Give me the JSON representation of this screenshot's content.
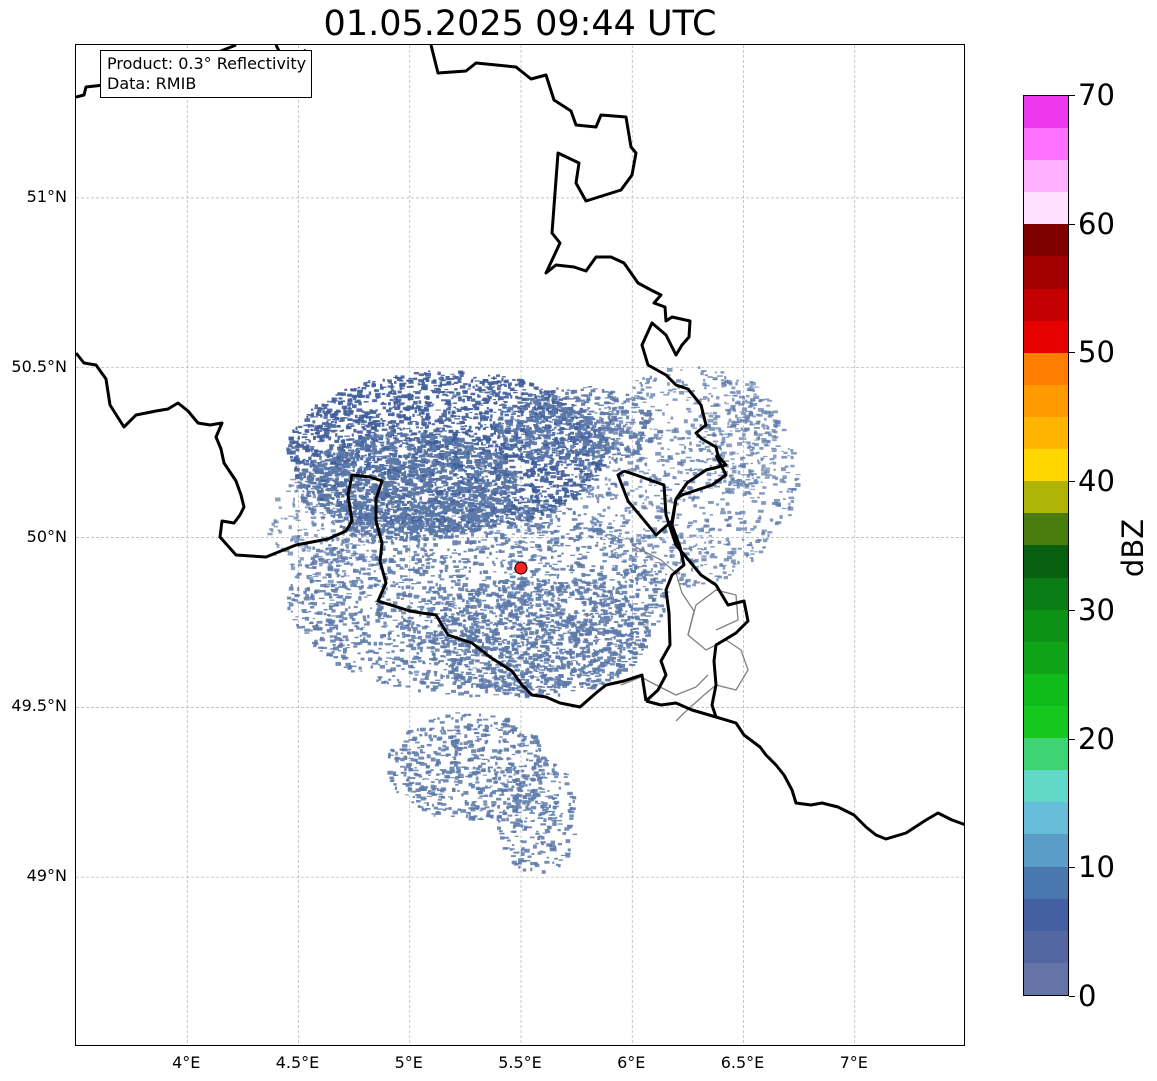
{
  "title": "01.05.2025 09:44 UTC",
  "info_box": {
    "product": "Product: 0.3° Reflectivity",
    "data": "Data: RMIB"
  },
  "map": {
    "lon_range": [
      3.5,
      7.5
    ],
    "lat_range": [
      48.5,
      51.45
    ],
    "lon_ticks": [
      {
        "value": 4.0,
        "label": "4°E"
      },
      {
        "value": 4.5,
        "label": "4.5°E"
      },
      {
        "value": 5.0,
        "label": "5°E"
      },
      {
        "value": 5.5,
        "label": "5.5°E"
      },
      {
        "value": 6.0,
        "label": "6°E"
      },
      {
        "value": 6.5,
        "label": "6.5°E"
      },
      {
        "value": 7.0,
        "label": "7°E"
      }
    ],
    "lat_ticks": [
      {
        "value": 51.0,
        "label": "51°N"
      },
      {
        "value": 50.5,
        "label": "50.5°N"
      },
      {
        "value": 50.0,
        "label": "50°N"
      },
      {
        "value": 49.5,
        "label": "49.5°N"
      },
      {
        "value": 49.0,
        "label": "49°N"
      }
    ],
    "gridlines": true,
    "radar_site": {
      "lon": 5.5,
      "lat": 49.91,
      "color": "#ff2020"
    },
    "echo_color": "#5b78a8",
    "dense_echo_color": "#3f5d9a",
    "border_color": "#000000",
    "admin_border_color": "#808080"
  },
  "colorbar": {
    "label": "dBZ",
    "min": 0,
    "max": 70,
    "ticks": [
      "0",
      "10",
      "20",
      "30",
      "40",
      "50",
      "60",
      "70"
    ],
    "colors": [
      "#6474a6",
      "#5467a2",
      "#4460a2",
      "#4a78ae",
      "#5a9ec8",
      "#66bedb",
      "#62d8c8",
      "#3ed474",
      "#16c81e",
      "#10bc1a",
      "#0ea416",
      "#0c9214",
      "#0a7c14",
      "#075f10",
      "#487c0c",
      "#b0b406",
      "#ffd600",
      "#ffb400",
      "#ff9a00",
      "#ff7e00",
      "#e60000",
      "#c40000",
      "#a20000",
      "#800000",
      "#ffe0ff",
      "#ffb0ff",
      "#ff70ff",
      "#ee38ee"
    ]
  }
}
